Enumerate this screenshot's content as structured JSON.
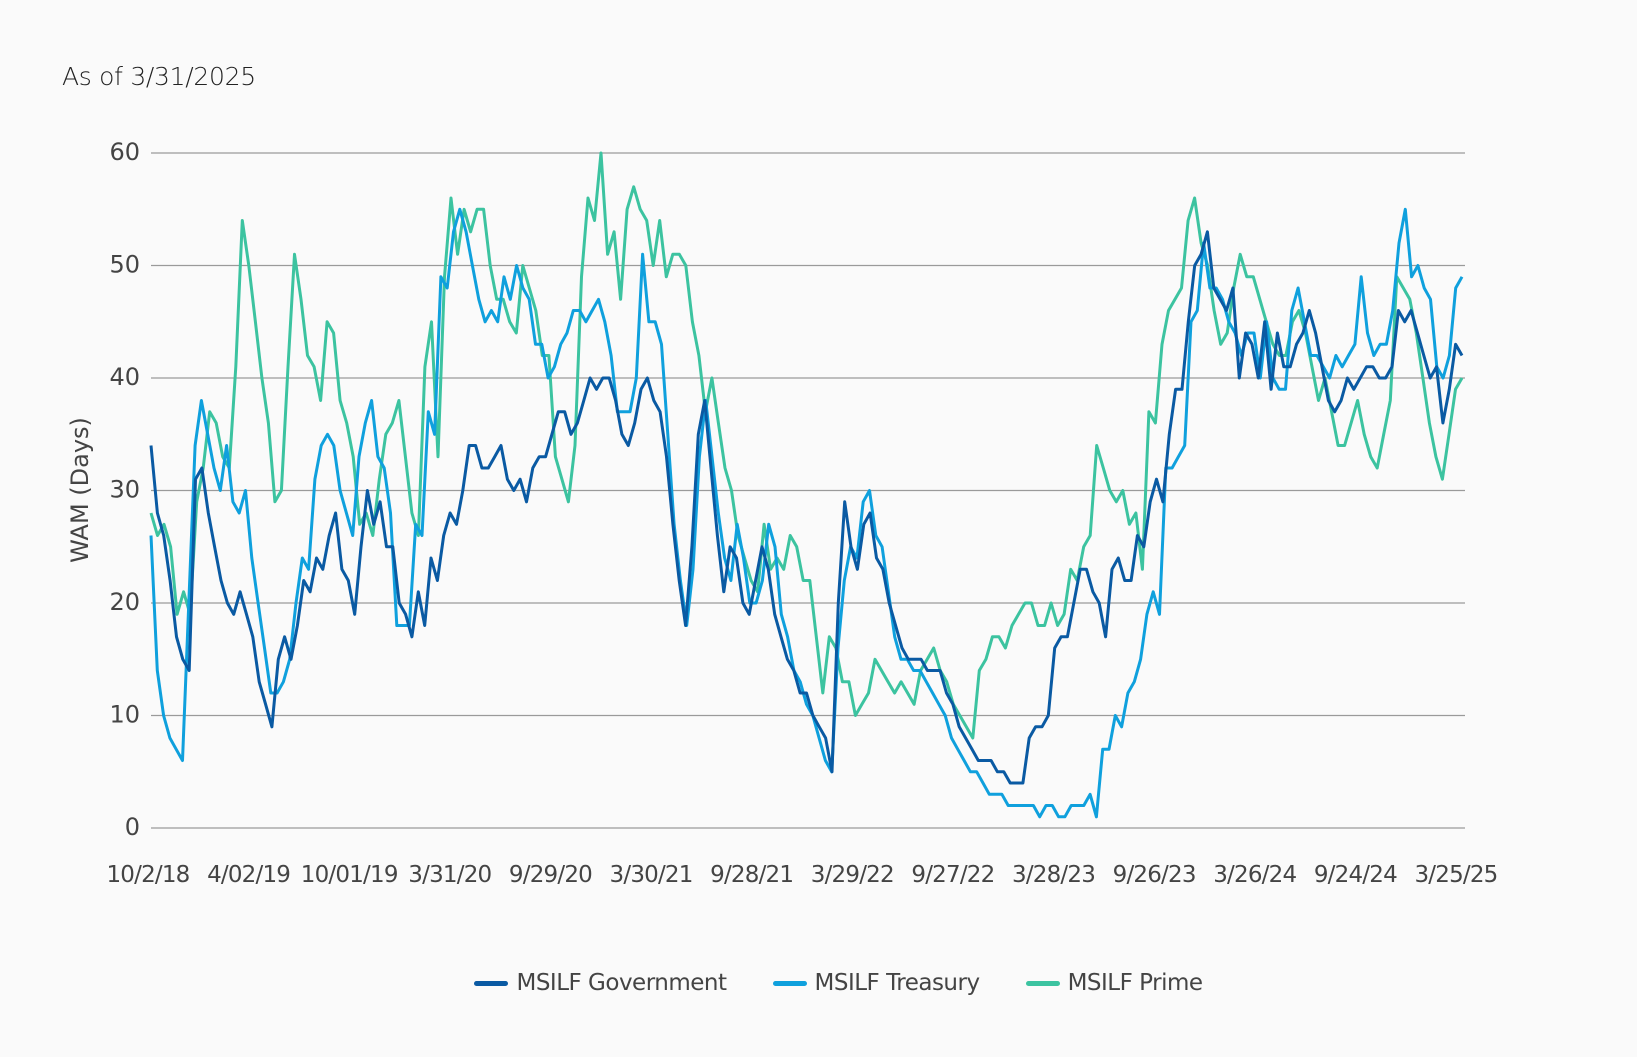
{
  "header": {
    "as_of": "As of 3/31/2025"
  },
  "chart_data": {
    "type": "line",
    "title": "",
    "xlabel": "",
    "ylabel": "WAM (Days)",
    "ylim": [
      0,
      60
    ],
    "yticks": [
      0,
      10,
      20,
      30,
      40,
      50,
      60
    ],
    "grid": true,
    "legend_position": "bottom-center",
    "x_tick_labels": [
      "10/2/18",
      "4/02/19",
      "10/01/19",
      "3/31/20",
      "9/29/20",
      "3/30/21",
      "9/28/21",
      "3/29/22",
      "9/27/22",
      "3/28/23",
      "9/26/23",
      "3/26/24",
      "9/24/24",
      "3/25/25"
    ],
    "x_start": "10/2/18",
    "x_end": "3/25/25",
    "sampling": "biweekly",
    "series": [
      {
        "name": "MSILF Government",
        "color": "#0a5aa3",
        "values": [
          34,
          28,
          26,
          22,
          17,
          15,
          14,
          31,
          32,
          28,
          25,
          22,
          20,
          19,
          21,
          19,
          17,
          13,
          11,
          9,
          15,
          17,
          15,
          18,
          22,
          21,
          24,
          23,
          26,
          28,
          23,
          22,
          19,
          25,
          30,
          27,
          29,
          25,
          25,
          20,
          19,
          17,
          21,
          18,
          24,
          22,
          26,
          28,
          27,
          30,
          34,
          34,
          32,
          32,
          33,
          34,
          31,
          30,
          31,
          29,
          32,
          33,
          33,
          35,
          37,
          37,
          35,
          36,
          38,
          40,
          39,
          40,
          40,
          38,
          35,
          34,
          36,
          39,
          40,
          38,
          37,
          33,
          27,
          22,
          18,
          25,
          35,
          38,
          32,
          26,
          21,
          25,
          24,
          20,
          19,
          22,
          25,
          23,
          19,
          17,
          15,
          14,
          12,
          12,
          10,
          9,
          8,
          5,
          20,
          29,
          25,
          23,
          27,
          28,
          24,
          23,
          20,
          18,
          16,
          15,
          15,
          15,
          14,
          14,
          14,
          12,
          11,
          9,
          8,
          7,
          6,
          6,
          6,
          5,
          5,
          4,
          4,
          4,
          8,
          9,
          9,
          10,
          16,
          17,
          17,
          20,
          23,
          23,
          21,
          20,
          17,
          23,
          24,
          22,
          22,
          26,
          25,
          29,
          31,
          29,
          35,
          39,
          39,
          45,
          50,
          51,
          53,
          48,
          47,
          46,
          48,
          40,
          44,
          43,
          40,
          45,
          39,
          44,
          41,
          41,
          43,
          44,
          46,
          44,
          41,
          38,
          37,
          38,
          40,
          39,
          40,
          41,
          41,
          40,
          40,
          41,
          46,
          45,
          46,
          44,
          42,
          40,
          41,
          36,
          39,
          43,
          42
        ]
      },
      {
        "name": "MSILF Treasury",
        "color": "#0fa0dd",
        "values": [
          26,
          14,
          10,
          8,
          7,
          6,
          20,
          34,
          38,
          35,
          32,
          30,
          34,
          29,
          28,
          30,
          24,
          20,
          16,
          12,
          12,
          13,
          15,
          20,
          24,
          23,
          31,
          34,
          35,
          34,
          30,
          28,
          26,
          33,
          36,
          38,
          33,
          32,
          28,
          18,
          18,
          18,
          27,
          26,
          37,
          35,
          49,
          48,
          53,
          55,
          53,
          50,
          47,
          45,
          46,
          45,
          49,
          47,
          50,
          48,
          47,
          43,
          43,
          40,
          41,
          43,
          44,
          46,
          46,
          45,
          46,
          47,
          45,
          42,
          37,
          37,
          37,
          40,
          51,
          45,
          45,
          43,
          35,
          27,
          22,
          18,
          23,
          33,
          38,
          33,
          28,
          24,
          22,
          27,
          24,
          20,
          20,
          22,
          27,
          25,
          19,
          17,
          14,
          13,
          11,
          10,
          8,
          6,
          5,
          16,
          22,
          25,
          24,
          29,
          30,
          26,
          25,
          21,
          17,
          15,
          15,
          14,
          14,
          13,
          12,
          11,
          10,
          8,
          7,
          6,
          5,
          5,
          4,
          3,
          3,
          3,
          2,
          2,
          2,
          2,
          2,
          1,
          2,
          2,
          1,
          1,
          2,
          2,
          2,
          3,
          1,
          7,
          7,
          10,
          9,
          12,
          13,
          15,
          19,
          21,
          19,
          32,
          32,
          33,
          34,
          45,
          46,
          52,
          48,
          48,
          47,
          45,
          44,
          42,
          44,
          44,
          40,
          45,
          40,
          39,
          39,
          46,
          48,
          45,
          42,
          42,
          41,
          40,
          42,
          41,
          42,
          43,
          49,
          44,
          42,
          43,
          43,
          46,
          52,
          55,
          49,
          50,
          48,
          47,
          41,
          40,
          42,
          48,
          49
        ]
      },
      {
        "name": "MSILF Prime",
        "color": "#3cc3a0",
        "values": [
          28,
          26,
          27,
          25,
          19,
          21,
          19,
          29,
          32,
          37,
          36,
          33,
          32,
          41,
          54,
          50,
          45,
          40,
          36,
          29,
          30,
          41,
          51,
          47,
          42,
          41,
          38,
          45,
          44,
          38,
          36,
          33,
          27,
          28,
          26,
          31,
          35,
          36,
          38,
          33,
          28,
          26,
          41,
          45,
          33,
          49,
          56,
          51,
          55,
          53,
          55,
          55,
          50,
          47,
          47,
          45,
          44,
          50,
          48,
          46,
          42,
          42,
          33,
          31,
          29,
          34,
          49,
          56,
          54,
          60,
          51,
          53,
          47,
          55,
          57,
          55,
          54,
          50,
          54,
          49,
          51,
          51,
          50,
          45,
          42,
          37,
          40,
          36,
          32,
          30,
          26,
          24,
          22,
          21,
          27,
          23,
          24,
          23,
          26,
          25,
          22,
          22,
          17,
          12,
          17,
          16,
          13,
          13,
          10,
          11,
          12,
          15,
          14,
          13,
          12,
          13,
          12,
          11,
          14,
          15,
          16,
          14,
          13,
          11,
          10,
          9,
          8,
          14,
          15,
          17,
          17,
          16,
          18,
          19,
          20,
          20,
          18,
          18,
          20,
          18,
          19,
          23,
          22,
          25,
          26,
          34,
          32,
          30,
          29,
          30,
          27,
          28,
          23,
          37,
          36,
          43,
          46,
          47,
          48,
          54,
          56,
          52,
          50,
          46,
          43,
          44,
          48,
          51,
          49,
          49,
          47,
          45,
          43,
          42,
          42,
          45,
          46,
          44,
          41,
          38,
          40,
          37,
          34,
          34,
          36,
          38,
          35,
          33,
          32,
          35,
          38,
          49,
          48,
          47,
          44,
          40,
          36,
          33,
          31,
          35,
          39,
          40
        ]
      }
    ]
  }
}
